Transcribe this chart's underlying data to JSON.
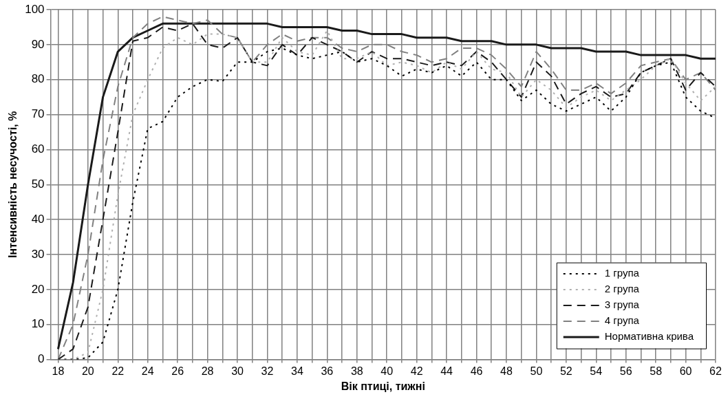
{
  "chart_data": {
    "type": "line",
    "xlabel": "Вік птиці, тижні",
    "ylabel": "Інтенсивність несучості, %",
    "x": [
      18,
      19,
      20,
      21,
      22,
      23,
      24,
      25,
      26,
      27,
      28,
      29,
      30,
      31,
      32,
      33,
      34,
      35,
      36,
      37,
      38,
      39,
      40,
      41,
      42,
      43,
      44,
      45,
      46,
      47,
      48,
      49,
      50,
      51,
      52,
      53,
      54,
      55,
      56,
      57,
      58,
      59,
      60,
      61,
      62
    ],
    "xlim": [
      17.5,
      62
    ],
    "xticks": [
      18,
      {
        "value": 19,
        "label": null
      },
      20,
      {
        "value": 21,
        "label": null
      },
      22,
      {
        "value": 23,
        "label": null
      },
      24,
      {
        "value": 25,
        "label": null
      },
      26,
      {
        "value": 27,
        "label": null
      },
      28,
      {
        "value": 29,
        "label": null
      },
      30,
      {
        "value": 31,
        "label": null
      },
      32,
      {
        "value": 33,
        "label": null
      },
      34,
      {
        "value": 35,
        "label": null
      },
      36,
      {
        "value": 37,
        "label": null
      },
      38,
      {
        "value": 39,
        "label": null
      },
      40,
      {
        "value": 41,
        "label": null
      },
      42,
      {
        "value": 43,
        "label": null
      },
      44,
      {
        "value": 45,
        "label": null
      },
      46,
      {
        "value": 47,
        "label": null
      },
      48,
      {
        "value": 49,
        "label": null
      },
      50,
      {
        "value": 51,
        "label": null
      },
      52,
      {
        "value": 53,
        "label": null
      },
      54,
      {
        "value": 55,
        "label": null
      },
      56,
      {
        "value": 57,
        "label": null
      },
      58,
      {
        "value": 59,
        "label": null
      },
      60,
      {
        "value": 61,
        "label": null
      },
      62
    ],
    "ylim": [
      0,
      100
    ],
    "yticks": [
      0,
      10,
      20,
      30,
      40,
      50,
      60,
      70,
      80,
      90,
      100
    ],
    "grid": true,
    "legend": "bottom right",
    "marker": "none",
    "series": [
      {
        "name": "1 група",
        "color": "#000000",
        "line_style": "dotted",
        "values": [
          0,
          0,
          0.5,
          5,
          20,
          45,
          66,
          68,
          75,
          78,
          80,
          79.5,
          85,
          85,
          88,
          89,
          87,
          86,
          87,
          88,
          85,
          86,
          84,
          81,
          83,
          82,
          84,
          81,
          85,
          80,
          80,
          74,
          77,
          73,
          71,
          73,
          75,
          71,
          75,
          82,
          84,
          85,
          75,
          71,
          69
        ]
      },
      {
        "name": "2 група",
        "color": "#b0b0b0",
        "line_style": "dotted",
        "values": [
          0,
          0,
          2,
          20,
          47,
          70,
          80,
          89,
          92,
          90,
          93,
          93,
          92,
          85,
          85,
          92,
          88,
          87,
          94,
          86,
          86,
          88,
          84,
          85,
          84,
          82,
          85,
          83,
          88,
          83,
          82,
          75,
          80,
          77,
          72,
          75,
          77,
          74,
          77,
          80,
          84,
          86,
          79,
          74,
          78
        ]
      },
      {
        "name": "3 група",
        "color": "#1a1a1a",
        "line_style": "dashed",
        "values": [
          0,
          3,
          15,
          40,
          65,
          91,
          92,
          95,
          94,
          96,
          90,
          89,
          92,
          85,
          84,
          90,
          87,
          92,
          90,
          88,
          85,
          88,
          86,
          86,
          85,
          84,
          85,
          84,
          88,
          85,
          80,
          75,
          85,
          81,
          73,
          76,
          78,
          75,
          76,
          82,
          84,
          86,
          77,
          82,
          78
        ]
      },
      {
        "name": "4 група",
        "color": "#808080",
        "line_style": "dashed",
        "values": [
          0,
          10,
          30,
          57,
          78,
          92,
          96,
          98,
          97,
          96,
          97,
          93,
          92,
          85,
          90,
          93,
          91,
          92,
          92,
          89,
          88,
          90,
          90,
          88,
          87,
          85,
          86,
          89,
          89,
          87,
          83,
          78,
          88,
          83,
          77,
          77,
          79,
          76,
          79,
          84,
          85,
          86,
          80,
          82,
          77
        ]
      },
      {
        "name": "Нормативна крива",
        "color": "#1a1a1a",
        "line_style": "solid",
        "values": [
          3,
          22,
          50,
          75,
          88,
          92,
          94,
          96,
          96,
          96,
          96,
          96,
          96,
          96,
          96,
          95,
          95,
          95,
          95,
          94,
          94,
          93,
          93,
          93,
          92,
          92,
          92,
          91,
          91,
          91,
          90,
          90,
          90,
          89,
          89,
          89,
          88,
          88,
          88,
          87,
          87,
          87,
          87,
          86,
          86
        ]
      }
    ]
  }
}
